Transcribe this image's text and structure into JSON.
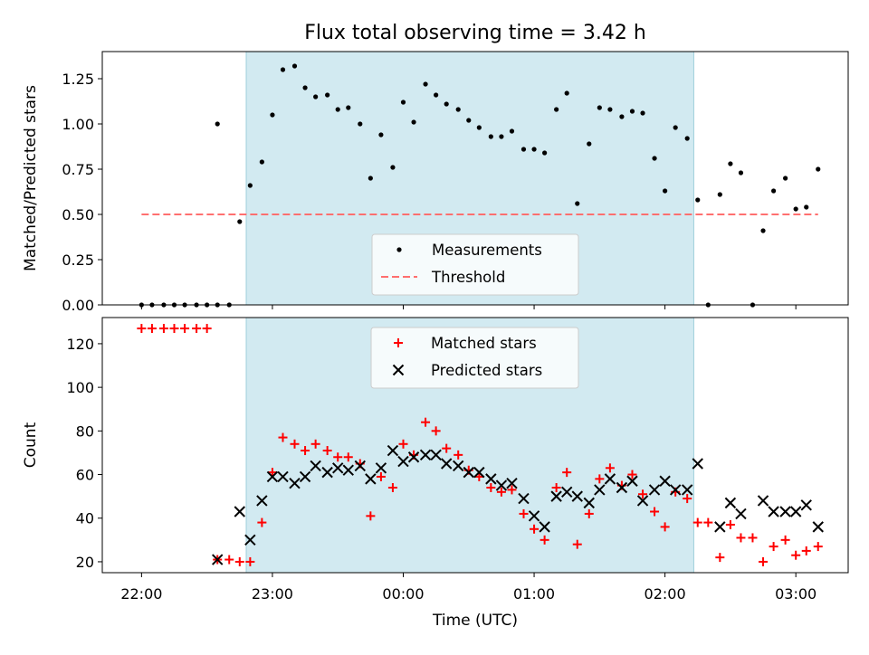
{
  "title": "Flux total observing time = 3.42 h",
  "colors": {
    "shade": "#add8e6",
    "measurement": "#000000",
    "threshold": "#ff6f6f",
    "matched": "#ff0000",
    "predicted": "#000000"
  },
  "chart_data": [
    {
      "type": "scatter",
      "ylabel": "Matched/Predicted stars",
      "xlim": [
        -0.3,
        5.4
      ],
      "ylim": [
        0,
        1.4
      ],
      "yticks": [
        0.0,
        0.25,
        0.5,
        0.75,
        1.0,
        1.25
      ],
      "ytick_labels": [
        "0.00",
        "0.25",
        "0.50",
        "0.75",
        "1.00",
        "1.25"
      ],
      "shaded_x_range": [
        0.8,
        4.22
      ],
      "legend": {
        "placement": "lower center",
        "entries": [
          "Measurements",
          "Threshold"
        ]
      },
      "series": [
        {
          "name": "Measurements",
          "marker": "dot",
          "points": [
            [
              0.0,
              0.0
            ],
            [
              0.08,
              0.0
            ],
            [
              0.17,
              0.0
            ],
            [
              0.25,
              0.0
            ],
            [
              0.33,
              0.0
            ],
            [
              0.42,
              0.0
            ],
            [
              0.5,
              0.0
            ],
            [
              0.58,
              0.0
            ],
            [
              0.58,
              1.0
            ],
            [
              0.67,
              0.0
            ],
            [
              0.75,
              0.46
            ],
            [
              0.83,
              0.66
            ],
            [
              0.92,
              0.79
            ],
            [
              1.0,
              1.05
            ],
            [
              1.08,
              1.3
            ],
            [
              1.17,
              1.32
            ],
            [
              1.25,
              1.2
            ],
            [
              1.33,
              1.15
            ],
            [
              1.42,
              1.16
            ],
            [
              1.5,
              1.08
            ],
            [
              1.58,
              1.09
            ],
            [
              1.67,
              1.0
            ],
            [
              1.75,
              0.7
            ],
            [
              1.83,
              0.94
            ],
            [
              1.92,
              0.76
            ],
            [
              2.0,
              1.12
            ],
            [
              2.08,
              1.01
            ],
            [
              2.17,
              1.22
            ],
            [
              2.25,
              1.16
            ],
            [
              2.33,
              1.11
            ],
            [
              2.42,
              1.08
            ],
            [
              2.5,
              1.02
            ],
            [
              2.58,
              0.98
            ],
            [
              2.67,
              0.93
            ],
            [
              2.75,
              0.93
            ],
            [
              2.83,
              0.96
            ],
            [
              2.92,
              0.86
            ],
            [
              3.0,
              0.86
            ],
            [
              3.08,
              0.84
            ],
            [
              3.17,
              1.08
            ],
            [
              3.25,
              1.17
            ],
            [
              3.33,
              0.56
            ],
            [
              3.42,
              0.89
            ],
            [
              3.5,
              1.09
            ],
            [
              3.58,
              1.08
            ],
            [
              3.67,
              1.04
            ],
            [
              3.75,
              1.07
            ],
            [
              3.83,
              1.06
            ],
            [
              3.92,
              0.81
            ],
            [
              4.0,
              0.63
            ],
            [
              4.08,
              0.98
            ],
            [
              4.17,
              0.92
            ],
            [
              4.25,
              0.58
            ],
            [
              4.33,
              0.0
            ],
            [
              4.42,
              0.61
            ],
            [
              4.5,
              0.78
            ],
            [
              4.58,
              0.73
            ],
            [
              4.67,
              0.0
            ],
            [
              4.75,
              0.41
            ],
            [
              4.83,
              0.63
            ],
            [
              4.92,
              0.7
            ],
            [
              5.0,
              0.53
            ],
            [
              5.08,
              0.54
            ],
            [
              5.17,
              0.75
            ]
          ]
        },
        {
          "name": "Threshold",
          "marker": "dashed-line",
          "points": [
            [
              0.0,
              0.5
            ],
            [
              5.17,
              0.5
            ]
          ]
        }
      ]
    },
    {
      "type": "scatter",
      "ylabel": "Count",
      "xlabel": "Time (UTC)",
      "xlim": [
        -0.3,
        5.4
      ],
      "ylim": [
        15,
        132
      ],
      "yticks": [
        20,
        40,
        60,
        80,
        100,
        120
      ],
      "ytick_labels": [
        "20",
        "40",
        "60",
        "80",
        "100",
        "120"
      ],
      "xticks": [
        0,
        1,
        2,
        3,
        4,
        5
      ],
      "xtick_labels": [
        "22:00",
        "23:00",
        "00:00",
        "01:00",
        "02:00",
        "03:00"
      ],
      "shaded_x_range": [
        0.8,
        4.22
      ],
      "legend": {
        "placement": "upper center",
        "entries": [
          "Matched stars",
          "Predicted stars"
        ]
      },
      "series": [
        {
          "name": "Matched stars",
          "marker": "plus",
          "points": [
            [
              0.0,
              127
            ],
            [
              0.08,
              127
            ],
            [
              0.17,
              127
            ],
            [
              0.25,
              127
            ],
            [
              0.33,
              127
            ],
            [
              0.42,
              127
            ],
            [
              0.5,
              127
            ],
            [
              0.58,
              21
            ],
            [
              0.67,
              21
            ],
            [
              0.75,
              20
            ],
            [
              0.83,
              20
            ],
            [
              0.92,
              38
            ],
            [
              1.0,
              61
            ],
            [
              1.08,
              77
            ],
            [
              1.17,
              74
            ],
            [
              1.25,
              71
            ],
            [
              1.33,
              74
            ],
            [
              1.42,
              71
            ],
            [
              1.5,
              68
            ],
            [
              1.58,
              68
            ],
            [
              1.67,
              65
            ],
            [
              1.75,
              41
            ],
            [
              1.83,
              59
            ],
            [
              1.92,
              54
            ],
            [
              2.0,
              74
            ],
            [
              2.08,
              69
            ],
            [
              2.17,
              84
            ],
            [
              2.25,
              80
            ],
            [
              2.33,
              72
            ],
            [
              2.42,
              69
            ],
            [
              2.5,
              62
            ],
            [
              2.58,
              59
            ],
            [
              2.67,
              54
            ],
            [
              2.75,
              52
            ],
            [
              2.83,
              53
            ],
            [
              2.92,
              42
            ],
            [
              3.0,
              35
            ],
            [
              3.08,
              30
            ],
            [
              3.17,
              54
            ],
            [
              3.25,
              61
            ],
            [
              3.33,
              28
            ],
            [
              3.42,
              42
            ],
            [
              3.5,
              58
            ],
            [
              3.58,
              63
            ],
            [
              3.67,
              55
            ],
            [
              3.75,
              60
            ],
            [
              3.83,
              51
            ],
            [
              3.92,
              43
            ],
            [
              4.0,
              36
            ],
            [
              4.08,
              52
            ],
            [
              4.17,
              49
            ],
            [
              4.25,
              38
            ],
            [
              4.33,
              38
            ],
            [
              4.42,
              22
            ],
            [
              4.5,
              37
            ],
            [
              4.58,
              31
            ],
            [
              4.67,
              31
            ],
            [
              4.75,
              20
            ],
            [
              4.83,
              27
            ],
            [
              4.92,
              30
            ],
            [
              5.0,
              23
            ],
            [
              5.08,
              25
            ],
            [
              5.17,
              27
            ]
          ]
        },
        {
          "name": "Predicted stars",
          "marker": "x",
          "points": [
            [
              0.58,
              21
            ],
            [
              0.75,
              43
            ],
            [
              0.83,
              30
            ],
            [
              0.92,
              48
            ],
            [
              1.0,
              59
            ],
            [
              1.08,
              59
            ],
            [
              1.17,
              56
            ],
            [
              1.25,
              59
            ],
            [
              1.33,
              64
            ],
            [
              1.42,
              61
            ],
            [
              1.5,
              63
            ],
            [
              1.58,
              62
            ],
            [
              1.67,
              64
            ],
            [
              1.75,
              58
            ],
            [
              1.83,
              63
            ],
            [
              1.92,
              71
            ],
            [
              2.0,
              66
            ],
            [
              2.08,
              68
            ],
            [
              2.17,
              69
            ],
            [
              2.25,
              69
            ],
            [
              2.33,
              65
            ],
            [
              2.42,
              64
            ],
            [
              2.5,
              61
            ],
            [
              2.58,
              61
            ],
            [
              2.67,
              58
            ],
            [
              2.75,
              55
            ],
            [
              2.83,
              56
            ],
            [
              2.92,
              49
            ],
            [
              3.0,
              41
            ],
            [
              3.08,
              36
            ],
            [
              3.17,
              50
            ],
            [
              3.25,
              52
            ],
            [
              3.33,
              50
            ],
            [
              3.42,
              47
            ],
            [
              3.5,
              53
            ],
            [
              3.58,
              58
            ],
            [
              3.67,
              54
            ],
            [
              3.75,
              57
            ],
            [
              3.83,
              48
            ],
            [
              3.92,
              53
            ],
            [
              4.0,
              57
            ],
            [
              4.08,
              53
            ],
            [
              4.17,
              53
            ],
            [
              4.25,
              65
            ],
            [
              4.42,
              36
            ],
            [
              4.5,
              47
            ],
            [
              4.58,
              42
            ],
            [
              4.75,
              48
            ],
            [
              4.83,
              43
            ],
            [
              4.92,
              43
            ],
            [
              5.0,
              43
            ],
            [
              5.08,
              46
            ],
            [
              5.17,
              36
            ]
          ]
        }
      ]
    }
  ]
}
